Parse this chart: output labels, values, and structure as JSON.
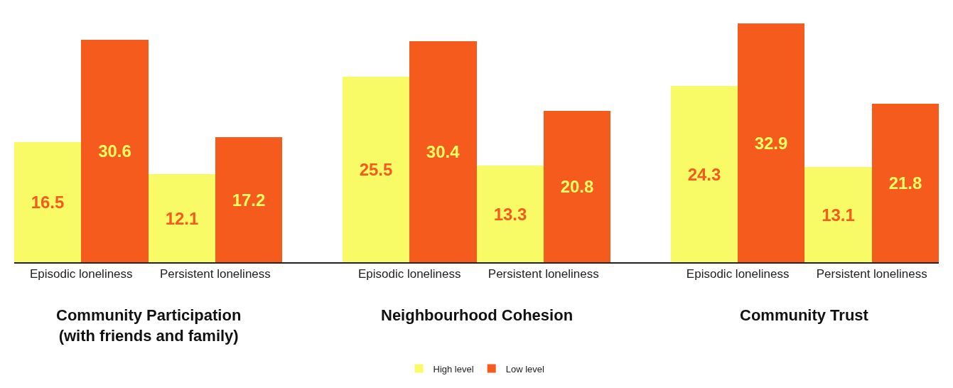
{
  "chart_data": {
    "type": "bar",
    "categories": [
      "Episodic loneliness",
      "Persistent loneliness",
      "Episodic loneliness",
      "Persistent loneliness",
      "Episodic loneliness",
      "Persistent loneliness"
    ],
    "series": [
      {
        "name": "High level",
        "color": "#f8fb66",
        "values": [
          16.5,
          12.1,
          25.5,
          13.3,
          24.3,
          13.1
        ]
      },
      {
        "name": "Low level",
        "color": "#f45b1d",
        "values": [
          30.6,
          17.2,
          30.4,
          20.8,
          32.9,
          21.8
        ]
      }
    ],
    "annotations": [
      "Community Participation\n(with friends and family)",
      "Neighbourhood Cohesion",
      "Community Trust"
    ],
    "data_labels": true,
    "legend": "bottom",
    "tick_labels": "x"
  }
}
